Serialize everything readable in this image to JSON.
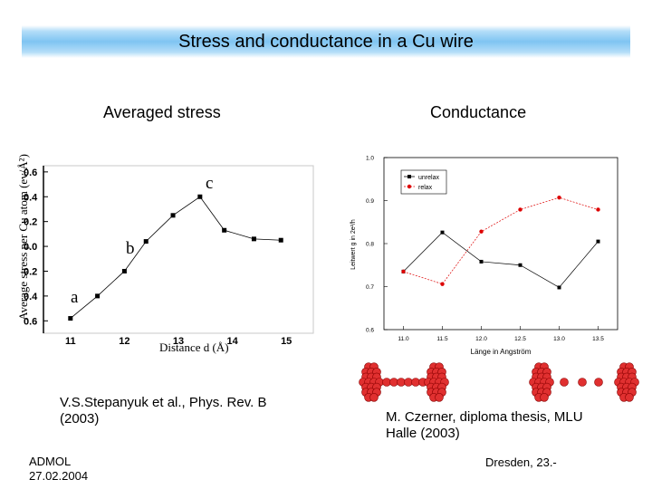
{
  "slide": {
    "title": "Stress and conductance in a Cu wire",
    "left_heading": "Averaged stress",
    "right_heading": "Conductance",
    "ref_left": "V.S.Stepanyuk et al., Phys. Rev. B (2003)",
    "ref_right": "M. Czerner, diploma thesis, MLU Halle (2003)",
    "footer_left_line1": "ADMOL",
    "footer_left_line2": "27.02.2004",
    "footer_right": "Dresden, 23.-"
  },
  "chart_data": [
    {
      "type": "line",
      "title": "Averaged stress",
      "xlabel": "Distance d (Å)",
      "ylabel": "Average stress per Cu atom (ev/Å²)",
      "x": [
        11.0,
        11.5,
        12.0,
        12.4,
        12.9,
        13.4,
        13.85,
        14.4,
        14.9
      ],
      "y": [
        -0.58,
        -0.4,
        -0.2,
        0.04,
        0.25,
        0.4,
        0.13,
        0.06,
        0.05
      ],
      "xlim": [
        10.5,
        15.5
      ],
      "ylim": [
        -0.7,
        0.65
      ],
      "xticks": [
        "11",
        "12",
        "13",
        "14",
        "15"
      ],
      "yticks": [
        "0.6",
        "0.4",
        "0.2",
        "0.0",
        "0.2",
        "0.4",
        "0.6"
      ],
      "annotations": [
        "a",
        "b",
        "c"
      ],
      "grid": false
    },
    {
      "type": "line",
      "title": "Conductance",
      "xlabel": "Länge in Angström",
      "ylabel": "Leitwert g in 2e²/h",
      "categories": [
        "11.0",
        "11.5",
        "12.0",
        "12.5",
        "13.0",
        "13.5"
      ],
      "x": [
        11.0,
        11.5,
        12.0,
        12.5,
        13.0,
        13.5
      ],
      "yticks": [
        "1.0",
        "0.9",
        "0.8",
        "0.7",
        "0.6"
      ],
      "ylim": [
        0.6,
        1.0
      ],
      "legend_position": "top-left",
      "series": [
        {
          "name": "unrelax",
          "values": [
            0.735,
            0.826,
            0.758,
            0.75,
            0.698,
            0.805
          ],
          "color": "#000000"
        },
        {
          "name": "relax",
          "values": [
            0.735,
            0.706,
            0.828,
            0.879,
            0.907,
            0.879
          ],
          "color": "#dd0000"
        }
      ],
      "grid": false
    }
  ],
  "wire_pictures": {
    "atom_color": "#e03030",
    "left_caption": "",
    "right_caption": ""
  }
}
